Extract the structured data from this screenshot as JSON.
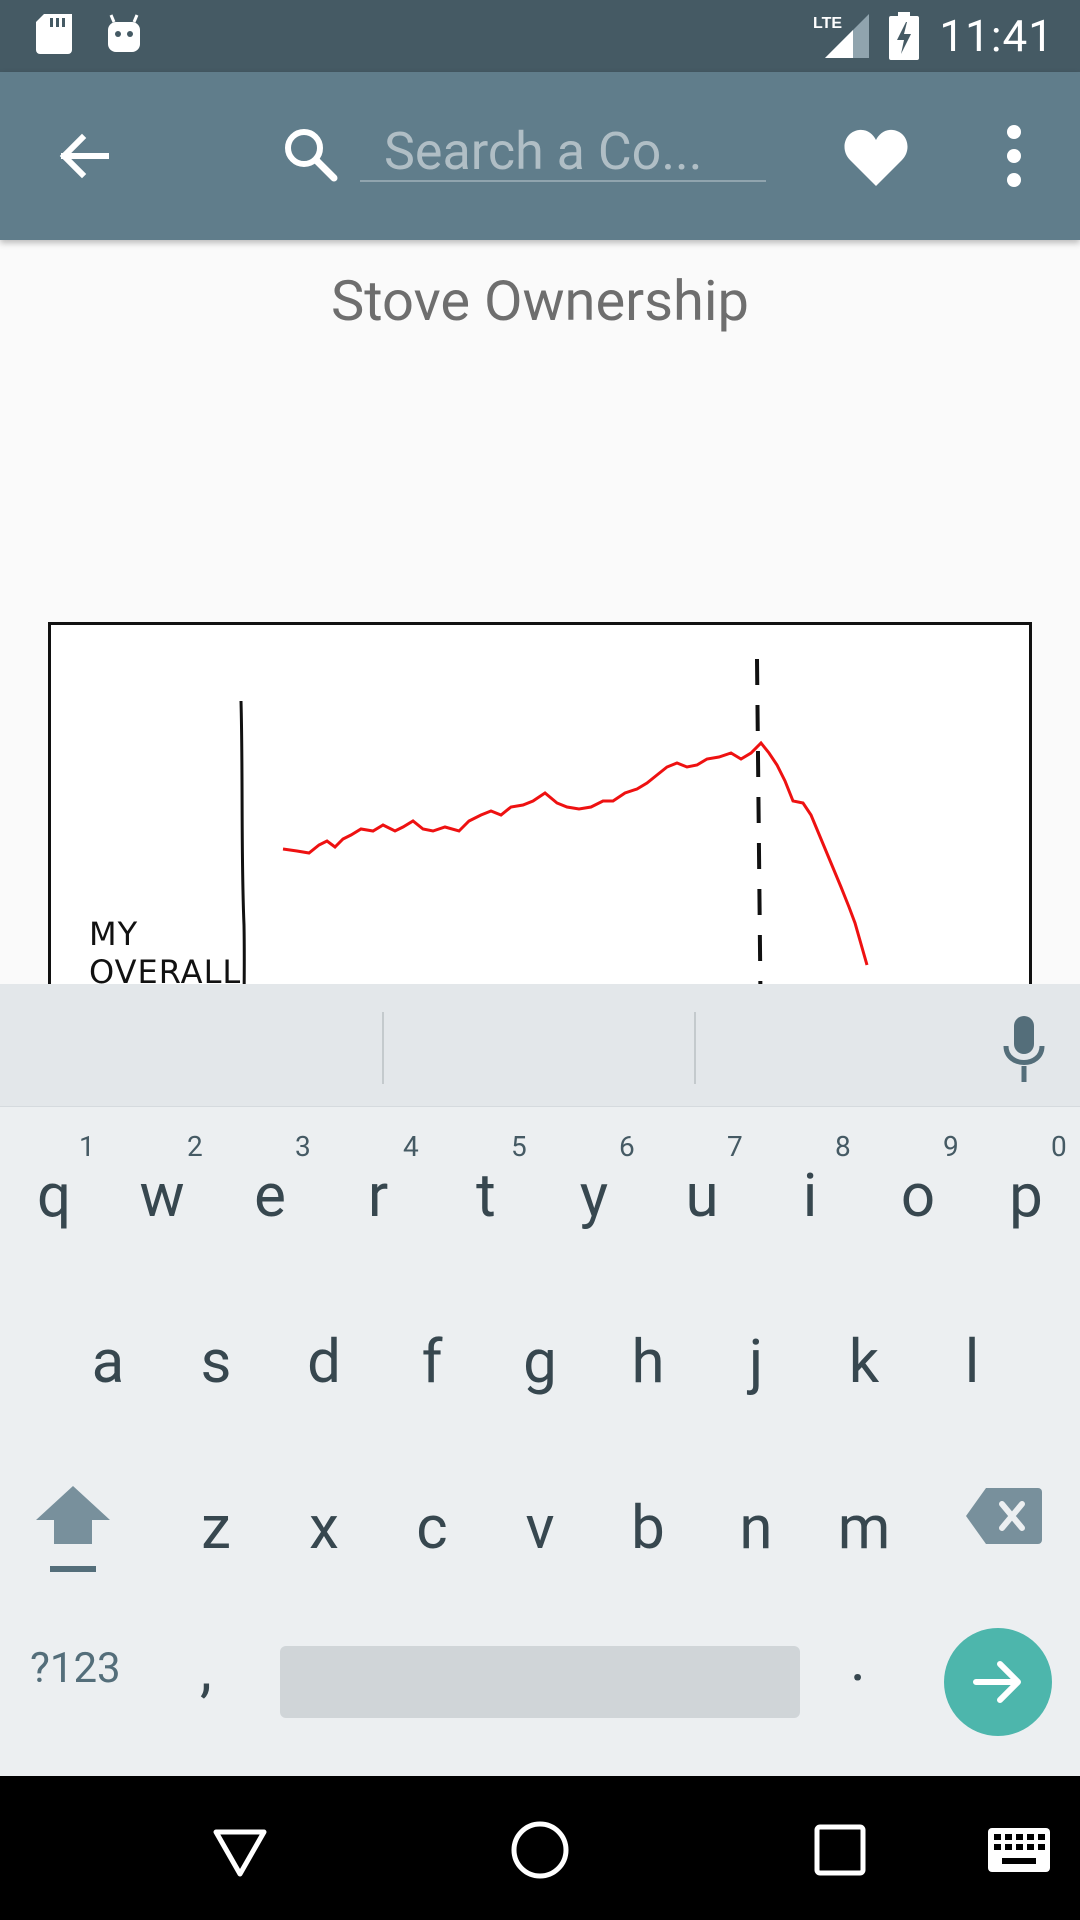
{
  "status_bar": {
    "time": "11:41",
    "network": "LTE",
    "icons": [
      "sd-card-icon",
      "android-debug-icon",
      "lte-signal-icon",
      "battery-charging-icon"
    ]
  },
  "app_bar": {
    "search_placeholder": "Search a Co...",
    "icons": [
      "back-arrow-icon",
      "search-icon",
      "heart-icon",
      "more-vert-icon"
    ]
  },
  "comic": {
    "title": "Stove Ownership",
    "label_line1": "MY",
    "label_line2": "OVERALL"
  },
  "keyboard": {
    "row1": [
      {
        "key": "q",
        "hint": "1"
      },
      {
        "key": "w",
        "hint": "2"
      },
      {
        "key": "e",
        "hint": "3"
      },
      {
        "key": "r",
        "hint": "4"
      },
      {
        "key": "t",
        "hint": "5"
      },
      {
        "key": "y",
        "hint": "6"
      },
      {
        "key": "u",
        "hint": "7"
      },
      {
        "key": "i",
        "hint": "8"
      },
      {
        "key": "o",
        "hint": "9"
      },
      {
        "key": "p",
        "hint": "0"
      }
    ],
    "row2": [
      "a",
      "s",
      "d",
      "f",
      "g",
      "h",
      "j",
      "k",
      "l"
    ],
    "row3": [
      "z",
      "x",
      "c",
      "v",
      "b",
      "n",
      "m"
    ],
    "symbols_key": "?123",
    "comma_key": ",",
    "period_key": ".",
    "accent_color": "#4db6ac"
  },
  "nav_bar": {
    "icons": [
      "back-triangle-icon",
      "home-circle-icon",
      "recents-square-icon",
      "keyboard-icon"
    ]
  }
}
